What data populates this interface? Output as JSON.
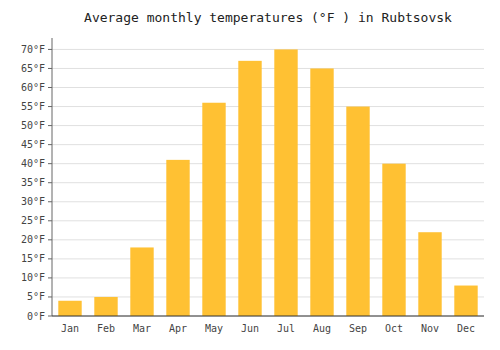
{
  "chart_data": {
    "type": "bar",
    "title": "Average monthly temperatures (°F ) in Rubtsovsk",
    "categories": [
      "Jan",
      "Feb",
      "Mar",
      "Apr",
      "May",
      "Jun",
      "Jul",
      "Aug",
      "Sep",
      "Oct",
      "Nov",
      "Dec"
    ],
    "values": [
      4,
      5,
      18,
      41,
      56,
      67,
      70,
      65,
      55,
      40,
      22,
      8
    ],
    "color": "#FFC133",
    "ylim": [
      0,
      73
    ],
    "yticks": [
      {
        "value": 0,
        "label": "0°F"
      },
      {
        "value": 5,
        "label": "5°F"
      },
      {
        "value": 10,
        "label": "10°F"
      },
      {
        "value": 15,
        "label": "15°F"
      },
      {
        "value": 20,
        "label": "20°F"
      },
      {
        "value": 25,
        "label": "25°F"
      },
      {
        "value": 30,
        "label": "30°F"
      },
      {
        "value": 35,
        "label": "35°F"
      },
      {
        "value": 40,
        "label": "40°F"
      },
      {
        "value": 45,
        "label": "45°F"
      },
      {
        "value": 50,
        "label": "50°F"
      },
      {
        "value": 55,
        "label": "55°F"
      },
      {
        "value": 60,
        "label": "60°F"
      },
      {
        "value": 65,
        "label": "65°F"
      },
      {
        "value": 70,
        "label": "70°F"
      }
    ],
    "grid": true
  }
}
